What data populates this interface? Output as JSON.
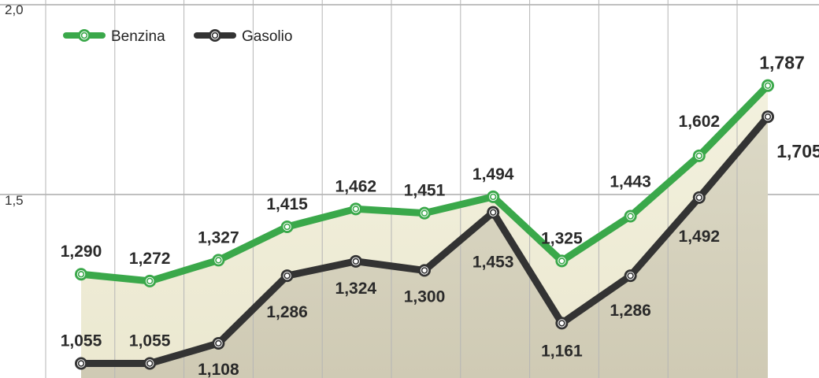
{
  "chart_data": {
    "type": "line",
    "yticks": [
      "2,0",
      "1,5"
    ],
    "ylim": [
      1.0,
      2.0
    ],
    "grid": true,
    "legend_position": "top-left",
    "series": [
      {
        "name": "Benzina",
        "color": "#3aa84a",
        "values": [
          1.29,
          1.272,
          1.327,
          1.415,
          1.462,
          1.451,
          1.494,
          1.325,
          1.443,
          1.602,
          1.787
        ],
        "labels": [
          "1,290",
          "1,272",
          "1,327",
          "1,415",
          "1,462",
          "1,451",
          "1,494",
          "1,325",
          "1,443",
          "1,602",
          "1,787"
        ]
      },
      {
        "name": "Gasolio",
        "color": "#333333",
        "values": [
          1.055,
          1.055,
          1.108,
          1.286,
          1.324,
          1.3,
          1.453,
          1.161,
          1.286,
          1.492,
          1.705
        ],
        "labels": [
          "1,055",
          "1,055",
          "1,108",
          "1,286",
          "1,324",
          "1,300",
          "1,453",
          "1,161",
          "1,286",
          "1,492",
          "1,705"
        ]
      }
    ]
  }
}
